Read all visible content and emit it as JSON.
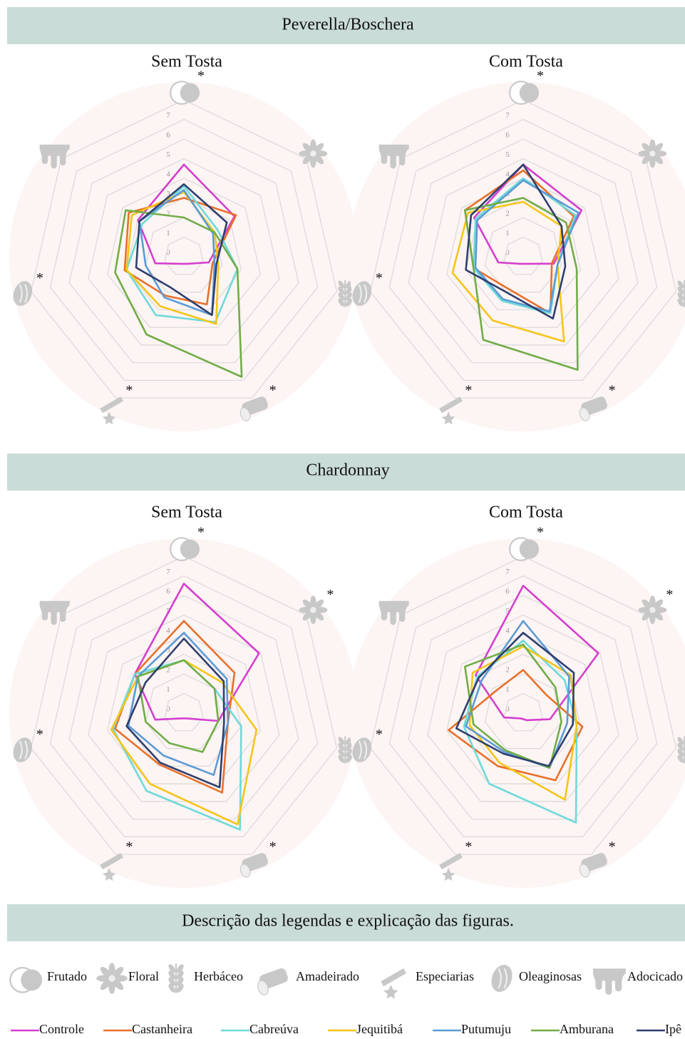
{
  "sections": [
    "Peverella/Boschera",
    "Chardonnay"
  ],
  "legend": {
    "title": "Descrição das legendas e explicação das figuras.",
    "attributes": [
      "Frutado",
      "Floral",
      "Herbáceo",
      "Amadeirado",
      "Especiarias",
      "Oleaginosas",
      "Adocicado"
    ],
    "series": [
      {
        "name": "Controle",
        "color": "#d43fce"
      },
      {
        "name": "Castanheira",
        "color": "#e8702a"
      },
      {
        "name": "Cabreúva",
        "color": "#6fd9d9"
      },
      {
        "name": "Jequitibá",
        "color": "#f5c518"
      },
      {
        "name": "Putumuju",
        "color": "#5b9bd5"
      },
      {
        "name": "Amburana",
        "color": "#70ad47"
      },
      {
        "name": "Ipê",
        "color": "#2e3f6e"
      }
    ]
  },
  "chart_data": [
    {
      "type": "radar",
      "title": "Sem Tosta",
      "ylim": [
        0,
        8
      ],
      "yticks": [
        0,
        1,
        2,
        3,
        4,
        5,
        6,
        7
      ],
      "significance": [
        "*",
        null,
        null,
        "*",
        "*",
        "*",
        null
      ],
      "series": [
        {
          "values": [
            4.7,
            3.3,
            1.3,
            0.4,
            0.4,
            1.5,
            3.0
          ]
        },
        {
          "values": [
            3.0,
            3.4,
            1.5,
            2.7,
            2.2,
            3.1,
            3.6
          ]
        },
        {
          "values": [
            3.6,
            2.2,
            2.8,
            3.7,
            3.3,
            3.0,
            2.7
          ]
        },
        {
          "values": [
            3.3,
            2.0,
            1.8,
            3.8,
            2.8,
            3.0,
            3.4
          ]
        },
        {
          "values": [
            3.4,
            1.9,
            1.6,
            3.3,
            2.3,
            2.0,
            2.9
          ]
        },
        {
          "values": [
            2.0,
            2.0,
            2.8,
            6.8,
            4.4,
            3.6,
            3.8
          ]
        },
        {
          "values": [
            3.7,
            2.8,
            1.7,
            3.3,
            1.7,
            2.5,
            2.9
          ]
        }
      ]
    },
    {
      "type": "radar",
      "title": "Com Tosta",
      "ylim": [
        0,
        8
      ],
      "yticks": [
        0,
        1,
        2,
        3,
        4,
        5,
        6,
        7
      ],
      "significance": [
        "*",
        null,
        null,
        "*",
        "*",
        "*",
        null
      ],
      "series": [
        {
          "values": [
            4.7,
            3.8,
            1.6,
            0.4,
            0.4,
            1.3,
            3.2
          ]
        },
        {
          "values": [
            4.4,
            3.3,
            1.5,
            3.2,
            1.8,
            2.6,
            3.8
          ]
        },
        {
          "values": [
            4.0,
            3.4,
            1.8,
            3.2,
            2.5,
            2.6,
            3.1
          ]
        },
        {
          "values": [
            2.8,
            2.5,
            1.8,
            4.8,
            3.6,
            3.7,
            3.6
          ]
        },
        {
          "values": [
            3.9,
            3.6,
            1.8,
            3.1,
            2.4,
            2.5,
            3.0
          ]
        },
        {
          "values": [
            3.0,
            2.8,
            2.8,
            6.4,
            4.7,
            2.6,
            3.8
          ]
        },
        {
          "values": [
            4.7,
            2.5,
            2.2,
            3.5,
            2.0,
            3.0,
            3.4
          ]
        }
      ]
    },
    {
      "type": "radar",
      "title": "Sem Tosta",
      "ylim": [
        0,
        8
      ],
      "yticks": [
        0,
        1,
        2,
        3,
        4,
        5,
        6,
        7
      ],
      "significance": [
        "*",
        "*",
        "*",
        "*",
        "*",
        "*",
        null
      ],
      "series": [
        {
          "values": [
            6.6,
            4.9,
            1.8,
            0.3,
            0.3,
            1.5,
            3.2
          ]
        },
        {
          "values": [
            4.7,
            3.3,
            2.3,
            4.5,
            2.9,
            3.6,
            3.2
          ]
        },
        {
          "values": [
            2.7,
            2.0,
            3.0,
            6.6,
            4.4,
            3.7,
            3.2
          ]
        },
        {
          "values": [
            2.7,
            2.5,
            3.8,
            6.3,
            4.0,
            3.8,
            3.0
          ]
        },
        {
          "values": [
            4.1,
            2.8,
            2.3,
            3.5,
            2.4,
            2.9,
            3.0
          ]
        },
        {
          "values": [
            2.7,
            2.0,
            1.8,
            2.2,
            1.7,
            2.0,
            3.0
          ]
        },
        {
          "values": [
            3.8,
            2.6,
            2.1,
            4.2,
            2.8,
            3.0,
            2.5
          ]
        }
      ]
    },
    {
      "type": "radar",
      "title": "Com Tosta",
      "ylim": [
        0,
        8
      ],
      "yticks": [
        0,
        1,
        2,
        3,
        4,
        5,
        6,
        7
      ],
      "significance": [
        "*",
        "*",
        "*",
        "*",
        "*",
        "*",
        null
      ],
      "series": [
        {
          "values": [
            6.5,
            4.9,
            1.4,
            0.4,
            0.3,
            1.0,
            3.1
          ]
        },
        {
          "values": [
            2.2,
            1.5,
            3.1,
            3.8,
            3.0,
            3.9,
            1.8
          ]
        },
        {
          "values": [
            3.7,
            2.7,
            2.8,
            6.2,
            4.0,
            3.1,
            3.0
          ]
        },
        {
          "values": [
            3.4,
            3.1,
            2.8,
            4.9,
            2.8,
            2.8,
            3.3
          ]
        },
        {
          "values": [
            4.7,
            3.0,
            2.3,
            3.1,
            2.2,
            3.0,
            2.7
          ]
        },
        {
          "values": [
            3.5,
            2.1,
            2.0,
            3.1,
            2.1,
            2.6,
            3.8
          ]
        },
        {
          "values": [
            4.1,
            3.3,
            2.6,
            3.0,
            2.3,
            3.5,
            2.9
          ]
        }
      ]
    }
  ]
}
